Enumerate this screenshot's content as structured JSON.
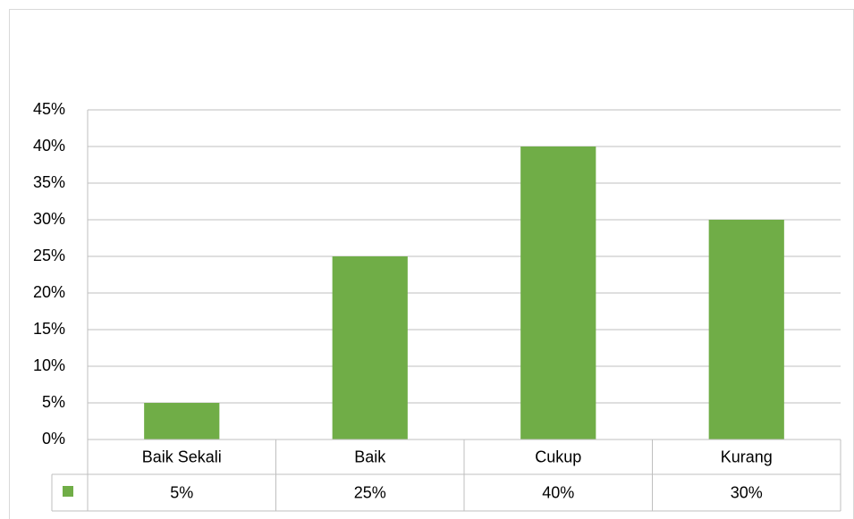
{
  "chart_data": {
    "type": "bar",
    "categories": [
      "Baik Sekali",
      "Baik",
      "Cukup",
      "Kurang"
    ],
    "series": [
      {
        "color": "#70ad47",
        "values": [
          5,
          25,
          40,
          30
        ]
      }
    ],
    "value_labels": [
      "5%",
      "25%",
      "40%",
      "30%"
    ],
    "ylim": [
      0,
      45
    ],
    "yticks": [
      {
        "value": 0,
        "label": "0%"
      },
      {
        "value": 5,
        "label": "5%"
      },
      {
        "value": 10,
        "label": "10%"
      },
      {
        "value": 15,
        "label": "15%"
      },
      {
        "value": 20,
        "label": "20%"
      },
      {
        "value": 25,
        "label": "25%"
      },
      {
        "value": 30,
        "label": "30%"
      },
      {
        "value": 35,
        "label": "35%"
      },
      {
        "value": 40,
        "label": "40%"
      },
      {
        "value": 45,
        "label": "45%"
      }
    ],
    "grid": true
  }
}
